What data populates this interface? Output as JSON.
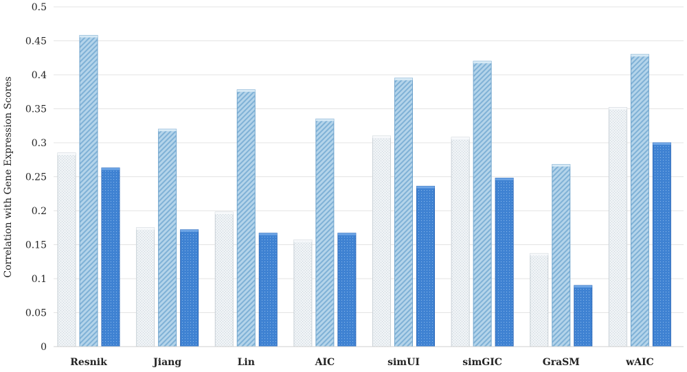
{
  "chart_data": {
    "type": "bar",
    "title": "",
    "xlabel": "",
    "ylabel": "Correlation with Gene Expression Scores",
    "ylim": [
      0,
      0.5
    ],
    "yticks": [
      0,
      0.05,
      0.1,
      0.15,
      0.2,
      0.25,
      0.3,
      0.35,
      0.4,
      0.45,
      0.5
    ],
    "ytick_labels": [
      "0",
      "0.05",
      "0.1",
      "0.15",
      "0.2",
      "0.25",
      "0.3",
      "0.35",
      "0.4",
      "0.45",
      "0.5"
    ],
    "grid": true,
    "legend": "none",
    "categories": [
      "Resnik",
      "Jiang",
      "Lin",
      "AIC",
      "simUI",
      "simGIC",
      "GraSM",
      "wAIC"
    ],
    "series": [
      {
        "values": [
          0.285,
          0.175,
          0.198,
          0.157,
          0.31,
          0.308,
          0.137,
          0.352
        ],
        "color": "#e6edf2"
      },
      {
        "values": [
          0.458,
          0.32,
          0.378,
          0.335,
          0.395,
          0.42,
          0.268,
          0.43
        ],
        "color": "#a9cde6"
      },
      {
        "values": [
          0.263,
          0.172,
          0.167,
          0.167,
          0.236,
          0.248,
          0.09,
          0.3
        ],
        "color": "#3d7fd0"
      }
    ]
  }
}
